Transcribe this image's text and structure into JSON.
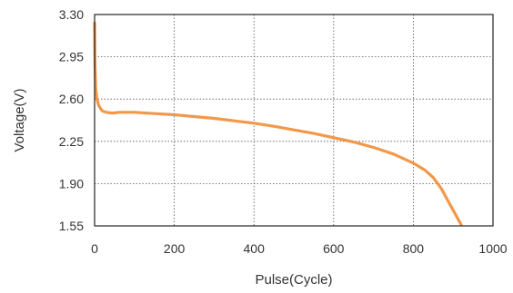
{
  "chart_data": {
    "type": "line",
    "title": "",
    "xlabel": "Pulse(Cycle)",
    "ylabel": "Voltage(V)",
    "xlim": [
      0,
      1000
    ],
    "ylim": [
      1.55,
      3.3
    ],
    "xticks": [
      "0",
      "200",
      "400",
      "600",
      "800",
      "1000"
    ],
    "yticks": [
      "3.30",
      "2.95",
      "2.60",
      "2.25",
      "1.90",
      "1.55"
    ],
    "grid": true,
    "legend": "none",
    "series": [
      {
        "color": "#F2984A",
        "x": [
          0,
          1,
          3,
          6,
          10,
          15,
          20,
          30,
          40,
          50,
          60,
          80,
          100,
          150,
          200,
          250,
          300,
          350,
          400,
          450,
          500,
          550,
          600,
          650,
          700,
          750,
          800,
          830,
          850,
          870,
          890,
          905,
          915,
          920
        ],
        "y": [
          3.23,
          2.9,
          2.68,
          2.6,
          2.55,
          2.52,
          2.5,
          2.49,
          2.485,
          2.485,
          2.49,
          2.49,
          2.49,
          2.48,
          2.47,
          2.455,
          2.44,
          2.42,
          2.4,
          2.375,
          2.345,
          2.315,
          2.28,
          2.245,
          2.2,
          2.145,
          2.07,
          2.01,
          1.95,
          1.86,
          1.74,
          1.65,
          1.59,
          1.56
        ]
      }
    ]
  }
}
